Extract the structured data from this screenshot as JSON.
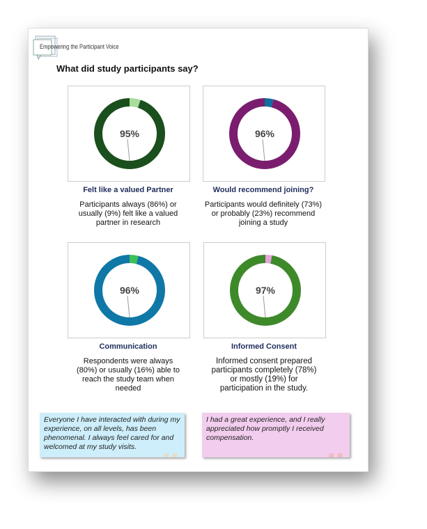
{
  "logo_text": "Empowering the Participant Voice",
  "heading": "What did study participants say?",
  "colors": {
    "title": "#1f2d5c",
    "quote1_bg": "#cdeefa",
    "quote2_bg": "#f2cdee"
  },
  "chart_data": [
    {
      "type": "pie",
      "variant": "donut",
      "center_label": "95%",
      "title": "Felt like a valued Partner",
      "description": "Participants always (86%) or usually (9%) felt like a valued partner in research",
      "slices": [
        {
          "value": 95,
          "color": "#1b4f1d"
        },
        {
          "value": 5,
          "color": "#a8dd9c"
        }
      ]
    },
    {
      "type": "pie",
      "variant": "donut",
      "center_label": "96%",
      "title": "Would recommend joining?",
      "description": "Participants would definitely (73%) or probably (23%) recommend joining a study",
      "slices": [
        {
          "value": 96,
          "color": "#7b1d6f"
        },
        {
          "value": 4,
          "color": "#0f6e9e"
        }
      ]
    },
    {
      "type": "pie",
      "variant": "donut",
      "center_label": "96%",
      "title": "Communication",
      "description": "Respondents were always (80%) or usually (16%) able to reach the study team when needed",
      "slices": [
        {
          "value": 96,
          "color": "#0f78a6"
        },
        {
          "value": 4,
          "color": "#3fbf5a"
        }
      ]
    },
    {
      "type": "pie",
      "variant": "donut",
      "center_label": "97%",
      "title": "Informed Consent",
      "description": "Informed consent prepared participants completely (78%) or mostly (19%) for participation in the study.",
      "slices": [
        {
          "value": 97,
          "color": "#3e8a2b"
        },
        {
          "value": 3,
          "color": "#e6a3dc"
        }
      ]
    }
  ],
  "quotes": [
    {
      "text": "Everyone I have interacted with during my experience, on all levels, has been phenomenal.  I always feel cared for and welcomed at my study visits.",
      "mark": "”"
    },
    {
      "text": "I had a great experience,  and I really appreciated how promptly I received compensation.",
      "mark": "”"
    }
  ]
}
